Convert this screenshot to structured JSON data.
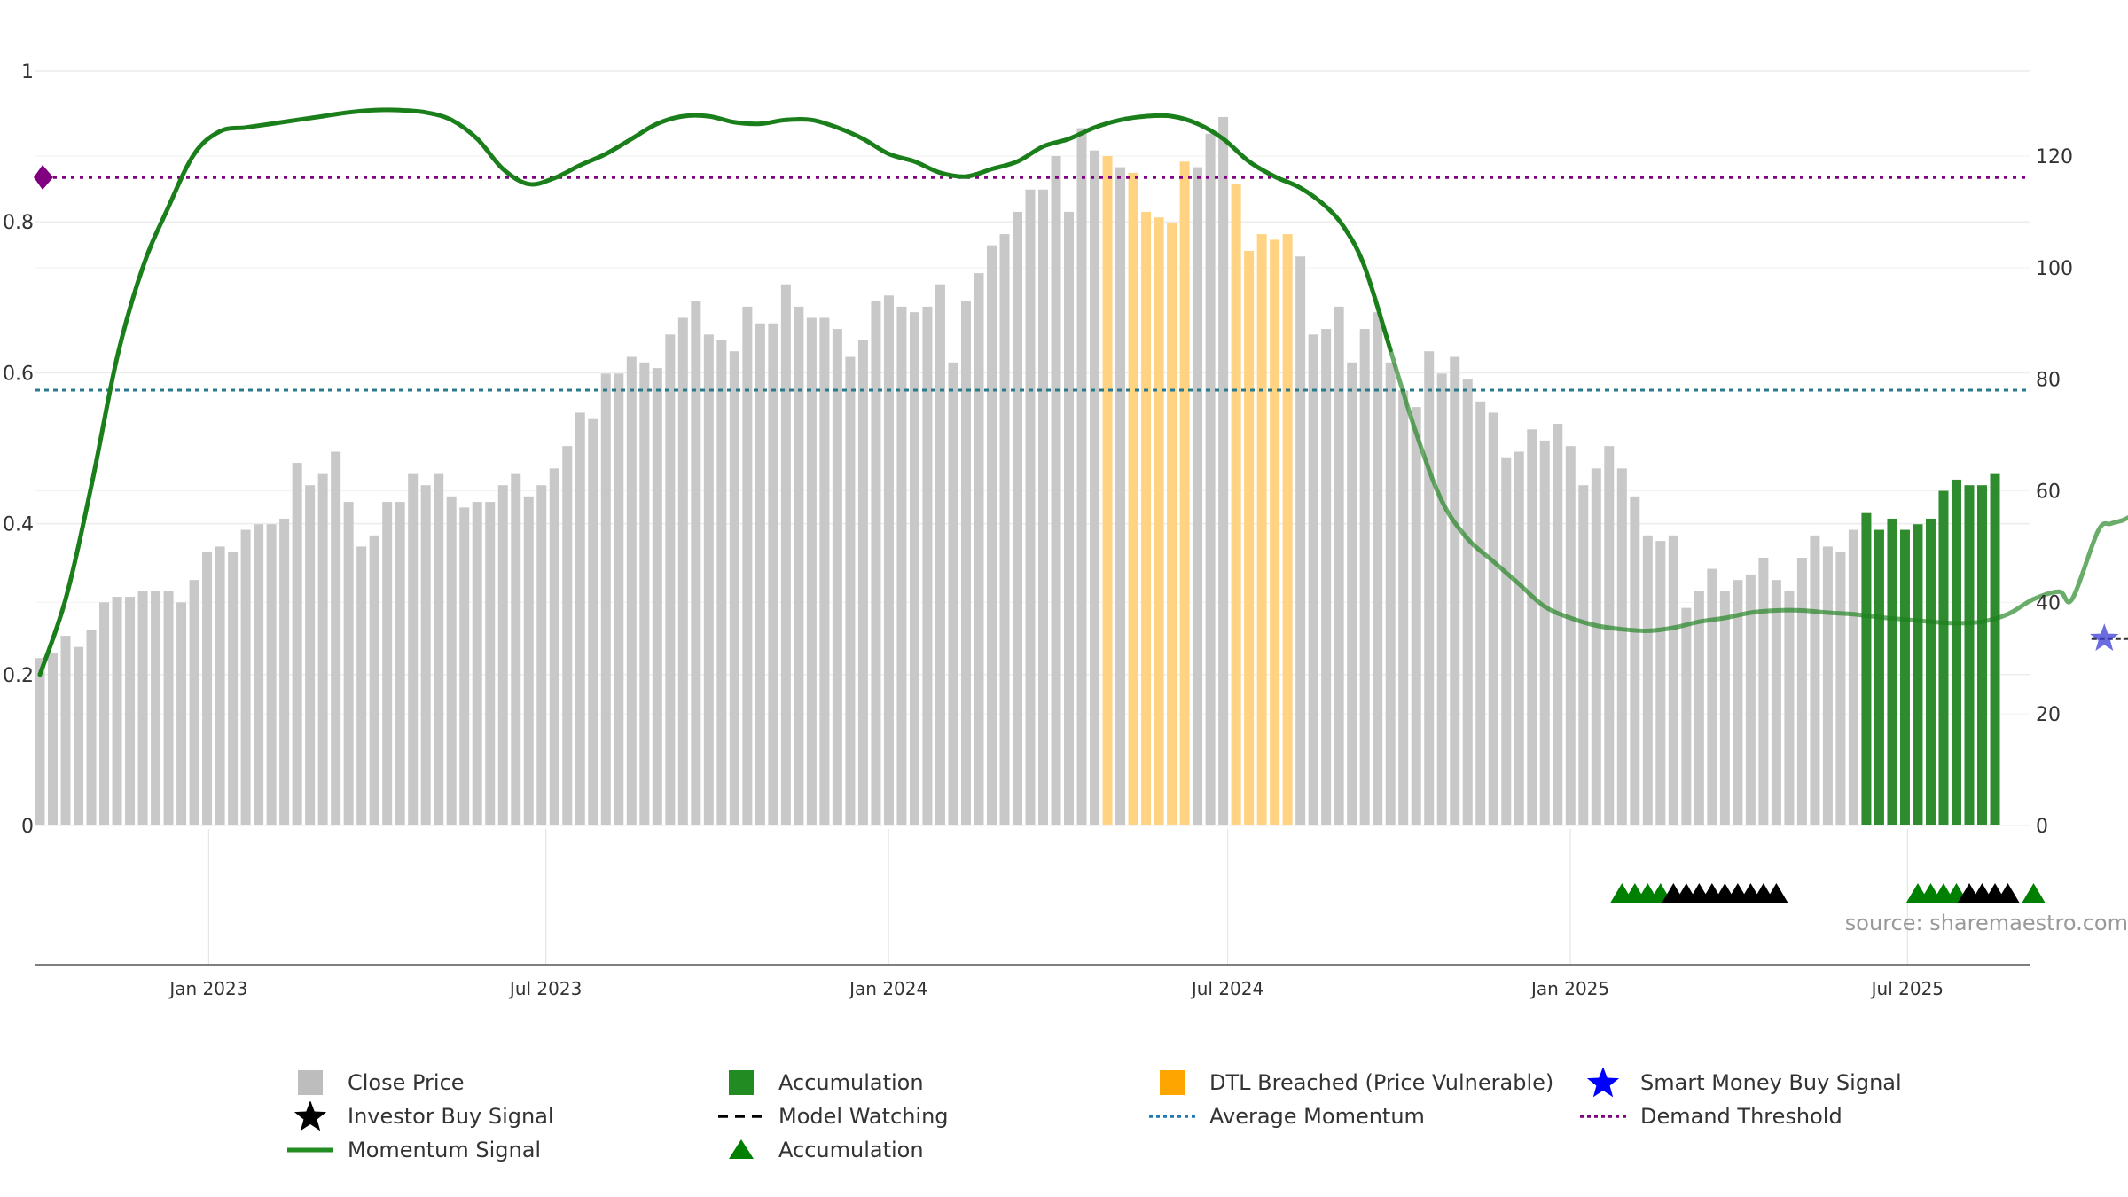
{
  "chart_data": {
    "type": "bar",
    "left_axis": {
      "ticks": [
        "0",
        "0.2",
        "0.4",
        "0.6",
        "0.8",
        "1"
      ],
      "range": [
        0,
        1
      ]
    },
    "right_axis": {
      "ticks": [
        "0",
        "20",
        "40",
        "60",
        "80",
        "100",
        "120"
      ],
      "range": [
        0,
        130
      ]
    },
    "x_axis": {
      "ticks": [
        "Jan 2023",
        "Jul 2023",
        "Jan 2024",
        "Jul 2024",
        "Jan 2025",
        "Jul 2025"
      ],
      "start": "2022-09-30",
      "end": "2025-09-05",
      "bar_step_days": 5
    },
    "grid": true,
    "bars": {
      "name": "Close Price",
      "values": [
        30,
        31,
        34,
        32,
        35,
        40,
        41,
        41,
        42,
        42,
        42,
        40,
        44,
        49,
        50,
        49,
        53,
        54,
        54,
        55,
        65,
        61,
        63,
        67,
        58,
        50,
        52,
        58,
        58,
        63,
        61,
        63,
        59,
        57,
        58,
        58,
        61,
        63,
        59,
        61,
        64,
        68,
        74,
        73,
        81,
        81,
        84,
        83,
        82,
        88,
        91,
        94,
        88,
        87,
        85,
        93,
        90,
        90,
        97,
        93,
        91,
        91,
        89,
        84,
        87,
        94,
        95,
        93,
        92,
        93,
        97,
        83,
        94,
        99,
        104,
        106,
        110,
        114,
        114,
        120,
        110,
        125,
        121,
        120,
        118,
        117,
        110,
        109,
        108,
        119,
        118,
        124,
        127,
        115,
        103,
        106,
        105,
        106,
        102,
        88,
        89,
        93,
        83,
        89,
        92,
        83,
        78,
        75,
        85,
        81,
        84,
        80,
        76,
        74,
        66,
        67,
        71,
        69,
        72,
        68,
        61,
        64,
        68,
        64,
        59,
        52,
        51,
        52,
        39,
        42,
        46,
        42,
        44,
        45,
        48,
        44,
        42,
        48,
        52,
        50,
        49,
        53,
        56,
        53,
        55,
        53,
        54,
        55,
        60,
        62,
        61,
        61,
        63
      ],
      "status": "GGGGGGGGGGGGGGGGGGGGGGGGGGGGGGGGGGGGGGGGGGGGGGGGGGGGGGGGGGGGGGGGGGGGGGGGGGGGGGGGGGGDGDDDDDGGGDDDDDGGGGGGGGGGGGGGGGGGGGGGGGGGGGGGGGGGGGGGGGGGGGAAAAAAAAAAAAGGGGGGGGGGGGAAAAAAAAGAGGGGG",
      "status_legend": {
        "G": "Close Price",
        "A": "Accumulation",
        "D": "DTL Breached (Price Vulnerable)"
      }
    },
    "momentum": {
      "name": "Momentum Signal",
      "points": [
        [
          0,
          0.2
        ],
        [
          2,
          0.3
        ],
        [
          4,
          0.45
        ],
        [
          6,
          0.62
        ],
        [
          8,
          0.74
        ],
        [
          10,
          0.82
        ],
        [
          12,
          0.89
        ],
        [
          14,
          0.92
        ],
        [
          16,
          0.925
        ],
        [
          18,
          0.93
        ],
        [
          20,
          0.935
        ],
        [
          22,
          0.94
        ],
        [
          24,
          0.945
        ],
        [
          26,
          0.948
        ],
        [
          28,
          0.948
        ],
        [
          30,
          0.945
        ],
        [
          32,
          0.935
        ],
        [
          34,
          0.91
        ],
        [
          36,
          0.87
        ],
        [
          38,
          0.85
        ],
        [
          40,
          0.858
        ],
        [
          42,
          0.875
        ],
        [
          44,
          0.89
        ],
        [
          46,
          0.91
        ],
        [
          48,
          0.93
        ],
        [
          50,
          0.94
        ],
        [
          52,
          0.94
        ],
        [
          54,
          0.932
        ],
        [
          56,
          0.93
        ],
        [
          58,
          0.935
        ],
        [
          60,
          0.935
        ],
        [
          62,
          0.925
        ],
        [
          64,
          0.91
        ],
        [
          66,
          0.89
        ],
        [
          68,
          0.88
        ],
        [
          70,
          0.865
        ],
        [
          72,
          0.86
        ],
        [
          74,
          0.87
        ],
        [
          76,
          0.88
        ],
        [
          78,
          0.9
        ],
        [
          80,
          0.91
        ],
        [
          82,
          0.925
        ],
        [
          84,
          0.935
        ],
        [
          86,
          0.94
        ],
        [
          88,
          0.94
        ],
        [
          90,
          0.93
        ],
        [
          92,
          0.91
        ],
        [
          94,
          0.88
        ],
        [
          96,
          0.86
        ],
        [
          98,
          0.845
        ],
        [
          100,
          0.82
        ],
        [
          101.5,
          0.79
        ],
        [
          103,
          0.74
        ],
        [
          105,
          0.63
        ],
        [
          107,
          0.52
        ],
        [
          109,
          0.43
        ],
        [
          111,
          0.38
        ],
        [
          113,
          0.35
        ],
        [
          115,
          0.32
        ],
        [
          117,
          0.29
        ],
        [
          119,
          0.275
        ],
        [
          121,
          0.265
        ],
        [
          123,
          0.26
        ],
        [
          125,
          0.258
        ],
        [
          127,
          0.262
        ],
        [
          129,
          0.27
        ],
        [
          131,
          0.275
        ],
        [
          133,
          0.282
        ],
        [
          135,
          0.285
        ],
        [
          137,
          0.285
        ],
        [
          139,
          0.282
        ],
        [
          141,
          0.28
        ],
        [
          143,
          0.276
        ],
        [
          145,
          0.273
        ],
        [
          147,
          0.27
        ],
        [
          149,
          0.268
        ],
        [
          151,
          0.27
        ],
        [
          153,
          0.28
        ],
        [
          155,
          0.3
        ],
        [
          157,
          0.31
        ],
        [
          158,
          0.3
        ],
        [
          160,
          0.39
        ],
        [
          161,
          0.4
        ],
        [
          162,
          0.405
        ],
        [
          163,
          0.415
        ],
        [
          165,
          0.44
        ],
        [
          167,
          0.48
        ]
      ],
      "range": [
        0,
        1
      ],
      "faded_from_index": 106
    },
    "average_momentum": {
      "name": "Average Momentum",
      "value": 0.577
    },
    "demand_threshold": {
      "name": "Demand Threshold",
      "value": 0.859
    },
    "model_watching": {
      "name": "Model Watching",
      "from_index": 159.5,
      "to_index": 163,
      "value": 33.5
    },
    "smart_money_signals": [
      {
        "index": 160.5,
        "value": 33.5
      }
    ],
    "signal_markers": {
      "accumulation_indices": [
        123,
        124,
        125,
        126,
        146,
        147,
        148,
        149,
        155
      ],
      "investor_buy_indices": [
        127,
        128,
        129,
        130,
        131,
        132,
        133,
        134,
        135,
        150,
        151,
        152,
        153
      ]
    },
    "source_note": "source: sharemaestro.com",
    "legend": [
      {
        "key": "close_price",
        "label": "Close Price",
        "symbol": "square",
        "color": "#bdbdbd"
      },
      {
        "key": "investor_buy",
        "label": "Investor Buy Signal",
        "symbol": "star",
        "color": "#000000"
      },
      {
        "key": "momentum",
        "label": "Momentum Signal",
        "symbol": "line",
        "color": "#228b22"
      },
      {
        "key": "accumulation_bar",
        "label": "Accumulation",
        "symbol": "square",
        "color": "#228b22"
      },
      {
        "key": "model_watching",
        "label": "Model Watching",
        "symbol": "dashed",
        "color": "#000000"
      },
      {
        "key": "accumulation_marker",
        "label": "Accumulation",
        "symbol": "triangle",
        "color": "#008000"
      },
      {
        "key": "dtl_breached",
        "label": "DTL Breached (Price Vulnerable)",
        "symbol": "square",
        "color": "#ffa500"
      },
      {
        "key": "average_momentum",
        "label": "Average Momentum",
        "symbol": "dotted",
        "color": "#1f77b4"
      },
      {
        "key": "smart_money",
        "label": "Smart Money Buy Signal",
        "symbol": "star",
        "color": "#0000ff"
      },
      {
        "key": "demand_threshold",
        "label": "Demand Threshold",
        "symbol": "dotted",
        "color": "#800080"
      }
    ],
    "colors": {
      "bar_gray": "#c8c8c8",
      "bar_accum": "#2e8b2e",
      "bar_dtl": "#ffd382",
      "momentum": "#1a7f1a",
      "avg_momentum": "#2a7a8c",
      "demand": "#800080",
      "marker_accum": "#008000",
      "marker_investor": "#000000",
      "smart_money": "#3b3bd6"
    }
  }
}
